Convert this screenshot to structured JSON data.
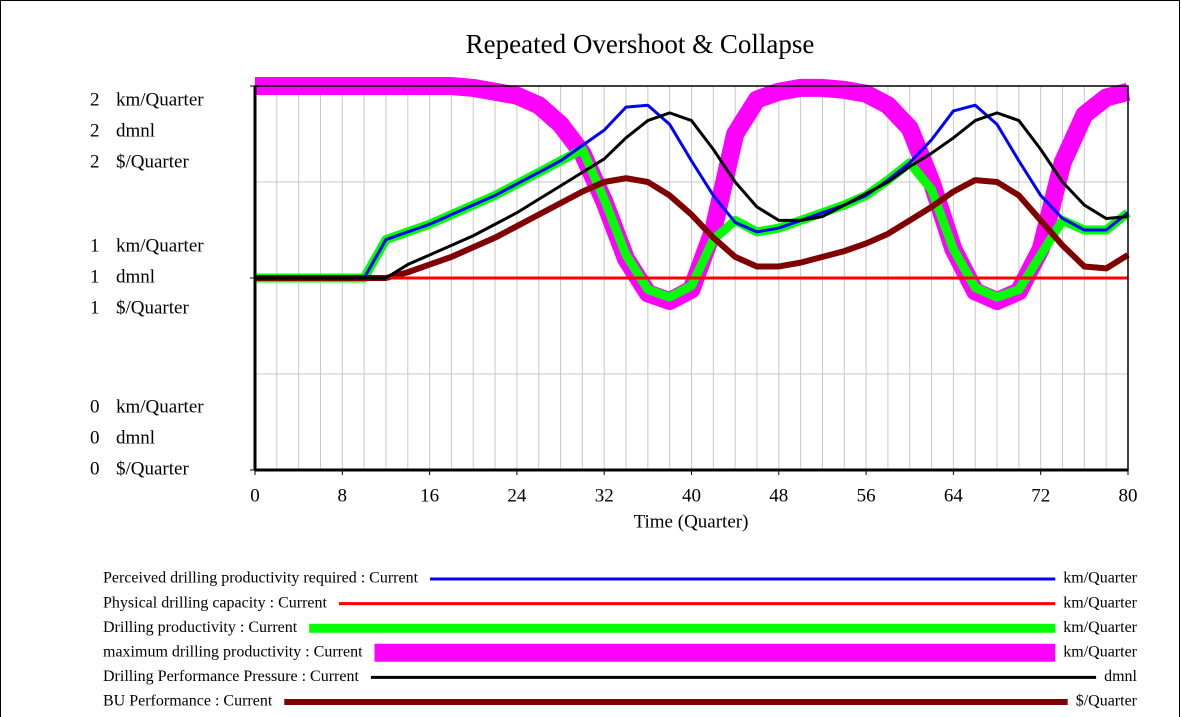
{
  "chart_data": {
    "type": "line",
    "title": "Repeated Overshoot & Collapse",
    "xlabel": "Time (Quarter)",
    "xlim": [
      0,
      80
    ],
    "xticks": [
      0,
      8,
      16,
      24,
      32,
      40,
      48,
      56,
      64,
      72,
      80
    ],
    "xgrid": [
      2,
      4,
      6,
      8,
      10,
      12,
      14,
      16,
      18,
      20,
      22,
      24,
      26,
      28,
      30,
      32,
      34,
      36,
      38,
      40,
      42,
      44,
      46,
      48,
      50,
      52,
      54,
      56,
      58,
      60,
      62,
      64,
      66,
      68,
      70,
      72,
      74,
      76,
      78
    ],
    "ylim": [
      0,
      2
    ],
    "yticks": [
      0,
      1,
      2
    ],
    "ygrid": [
      0.5,
      1,
      1.5
    ],
    "y_units": [
      "km/Quarter",
      "dmnl",
      "$/Quarter"
    ],
    "grid": true,
    "legend": "bottom",
    "x": [
      0,
      2,
      4,
      6,
      8,
      10,
      12,
      14,
      16,
      18,
      20,
      22,
      24,
      26,
      28,
      30,
      32,
      34,
      36,
      38,
      40,
      42,
      44,
      46,
      48,
      50,
      52,
      54,
      56,
      58,
      60,
      62,
      64,
      66,
      68,
      70,
      72,
      74,
      76,
      78,
      80
    ],
    "series": [
      {
        "name": "Perceived drilling productivity required : Current",
        "unit": "km/Quarter",
        "color": "#0000ff",
        "width": 3,
        "values": [
          1,
          1,
          1,
          1,
          1,
          1,
          1.2,
          1.24,
          1.28,
          1.33,
          1.38,
          1.43,
          1.49,
          1.55,
          1.61,
          1.69,
          1.77,
          1.89,
          1.9,
          1.8,
          1.61,
          1.43,
          1.29,
          1.24,
          1.26,
          1.3,
          1.34,
          1.38,
          1.43,
          1.51,
          1.6,
          1.72,
          1.87,
          1.9,
          1.8,
          1.61,
          1.43,
          1.31,
          1.25,
          1.25,
          1.34
        ]
      },
      {
        "name": "Physical drilling capacity : Current",
        "unit": "km/Quarter",
        "color": "#ff0000",
        "width": 3,
        "values": [
          1,
          1,
          1,
          1,
          1,
          1,
          1,
          1,
          1,
          1,
          1,
          1,
          1,
          1,
          1,
          1,
          1,
          1,
          1,
          1,
          1,
          1,
          1,
          1,
          1,
          1,
          1,
          1,
          1,
          1,
          1,
          1,
          1,
          1,
          1,
          1,
          1,
          1,
          1,
          1,
          1
        ]
      },
      {
        "name": "Drilling productivity : Current",
        "unit": "km/Quarter",
        "color": "#00ff00",
        "width": 9,
        "values": [
          1,
          1,
          1,
          1,
          1,
          1,
          1.2,
          1.24,
          1.28,
          1.33,
          1.38,
          1.43,
          1.49,
          1.55,
          1.61,
          1.67,
          1.41,
          1.12,
          0.94,
          0.9,
          0.96,
          1.2,
          1.3,
          1.24,
          1.26,
          1.3,
          1.34,
          1.38,
          1.43,
          1.51,
          1.6,
          1.46,
          1.15,
          0.95,
          0.9,
          0.94,
          1.12,
          1.3,
          1.25,
          1.25,
          1.34
        ]
      },
      {
        "name": "maximum drilling productivity : Current",
        "unit": "km/Quarter",
        "color": "#ff00ff",
        "width": 18,
        "values": [
          2,
          2,
          2,
          2,
          2,
          2,
          2,
          2,
          2,
          2,
          1.99,
          1.97,
          1.95,
          1.9,
          1.8,
          1.65,
          1.4,
          1.1,
          0.92,
          0.88,
          0.94,
          1.25,
          1.75,
          1.93,
          1.97,
          1.99,
          1.99,
          1.98,
          1.96,
          1.9,
          1.78,
          1.5,
          1.15,
          0.93,
          0.88,
          0.93,
          1.15,
          1.6,
          1.85,
          1.94,
          1.97
        ]
      },
      {
        "name": "Drilling Performance Pressure : Current",
        "unit": "dmnl",
        "color": "#000000",
        "width": 3,
        "values": [
          1,
          1,
          1,
          1,
          1,
          1,
          1,
          1.07,
          1.12,
          1.17,
          1.22,
          1.28,
          1.34,
          1.41,
          1.48,
          1.55,
          1.62,
          1.73,
          1.82,
          1.86,
          1.82,
          1.67,
          1.5,
          1.37,
          1.3,
          1.3,
          1.32,
          1.38,
          1.44,
          1.5,
          1.58,
          1.65,
          1.73,
          1.82,
          1.86,
          1.82,
          1.67,
          1.5,
          1.38,
          1.31,
          1.32
        ]
      },
      {
        "name": "BU Performance : Current",
        "unit": "$/Quarter",
        "color": "#800000",
        "width": 6,
        "values": [
          1,
          1,
          1,
          1,
          1,
          1,
          1,
          1.03,
          1.07,
          1.11,
          1.16,
          1.21,
          1.27,
          1.33,
          1.39,
          1.45,
          1.5,
          1.52,
          1.5,
          1.43,
          1.33,
          1.21,
          1.11,
          1.06,
          1.06,
          1.08,
          1.11,
          1.14,
          1.18,
          1.23,
          1.3,
          1.37,
          1.45,
          1.51,
          1.5,
          1.43,
          1.3,
          1.17,
          1.06,
          1.05,
          1.12
        ]
      }
    ]
  }
}
